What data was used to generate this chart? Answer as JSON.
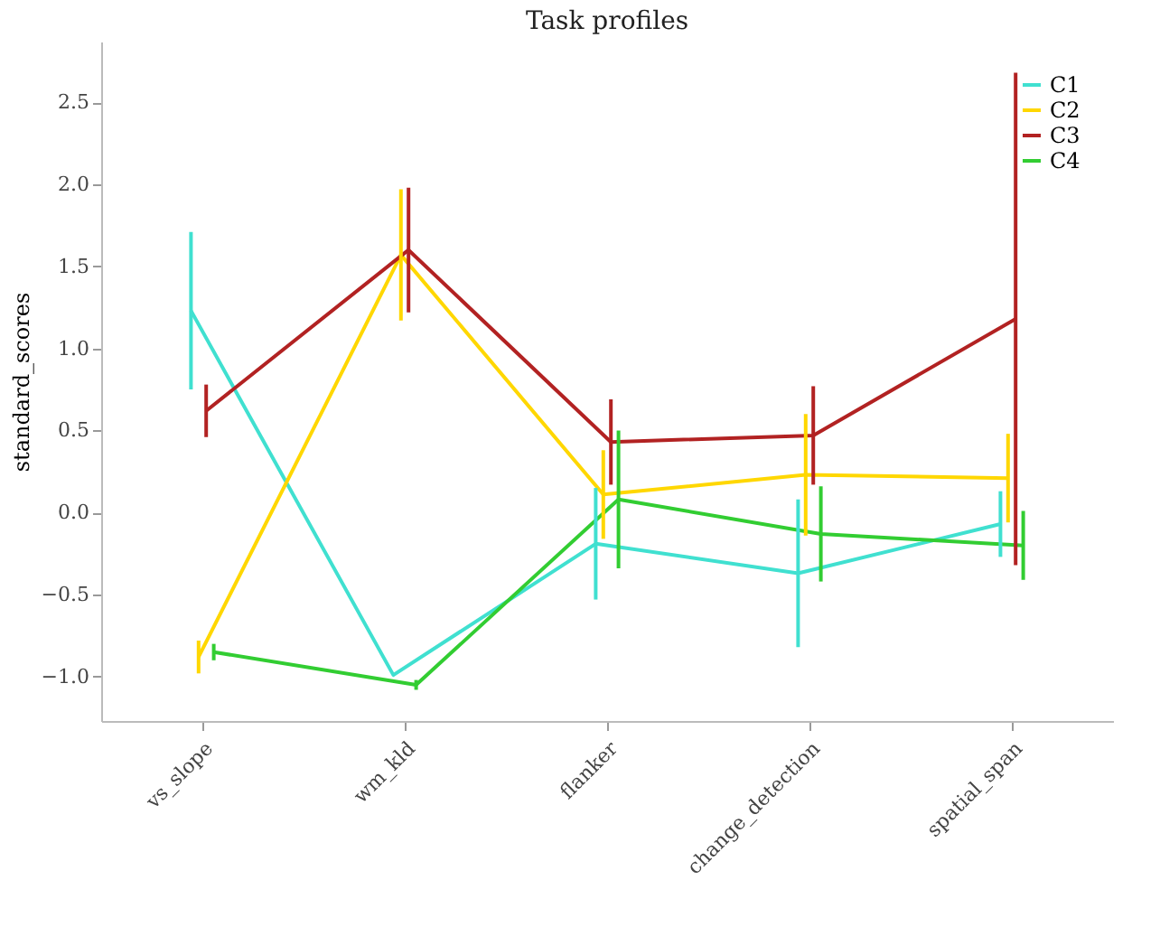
{
  "chart_data": {
    "type": "line",
    "title": "Task profiles",
    "ylabel": "standard_scores",
    "categories": [
      "vs_slope",
      "wm_kld",
      "flanker",
      "change_detection",
      "spatial_span"
    ],
    "series": [
      {
        "name": "C1",
        "color": "#40e0d0",
        "values": [
          1.23,
          -0.99,
          -0.19,
          -0.37,
          -0.07
        ],
        "errors": [
          0.48,
          null,
          0.34,
          0.45,
          0.2
        ]
      },
      {
        "name": "C2",
        "color": "#ffd700",
        "values": [
          -0.88,
          1.57,
          0.11,
          0.23,
          0.21
        ],
        "errors": [
          0.1,
          0.4,
          0.27,
          0.37,
          0.27
        ]
      },
      {
        "name": "C3",
        "color": "#b22222",
        "values": [
          0.62,
          1.6,
          0.43,
          0.47,
          1.18
        ],
        "errors": [
          0.16,
          0.38,
          0.26,
          0.3,
          1.5
        ]
      },
      {
        "name": "C4",
        "color": "#32cd32",
        "values": [
          -0.85,
          -1.05,
          0.08,
          -0.13,
          -0.2
        ],
        "errors": [
          0.05,
          0.03,
          0.42,
          0.29,
          0.21
        ]
      }
    ],
    "ylim": [
      -1.27,
      2.87
    ],
    "yticks": [
      {
        "value": -1,
        "label": "−1.0"
      },
      {
        "value": -0.5,
        "label": "−0.5"
      },
      {
        "value": 0,
        "label": "0.0"
      },
      {
        "value": 0.5,
        "label": "0.5"
      },
      {
        "value": 1,
        "label": "1.0"
      },
      {
        "value": 1.5,
        "label": "1.5"
      },
      {
        "value": 2,
        "label": "2.0"
      },
      {
        "value": 2.5,
        "label": "2.5"
      }
    ],
    "grid": false,
    "legend": "top right",
    "marker": "none",
    "line_style": "solid"
  }
}
